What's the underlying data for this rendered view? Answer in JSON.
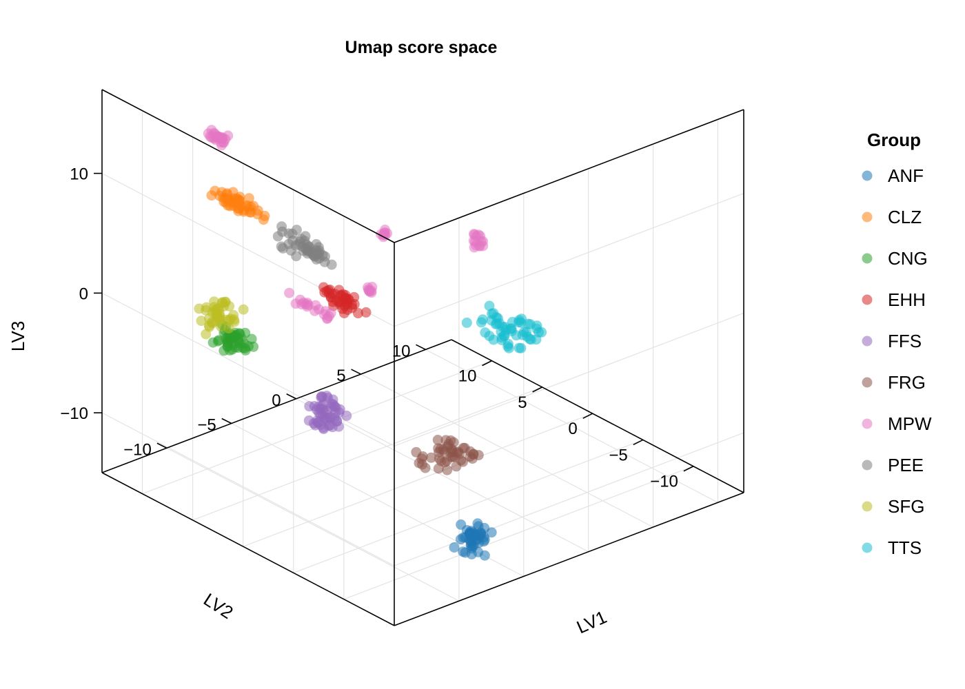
{
  "chart_data": {
    "type": "scatter",
    "projection": "3d",
    "title": "Umap score space",
    "xlabel": "LV1",
    "ylabel": "LV2",
    "zlabel": "LV3",
    "xlim": [
      -15,
      12
    ],
    "ylim": [
      -15,
      14
    ],
    "zlim": [
      -15,
      17
    ],
    "x_ticks": [
      -10,
      -5,
      0,
      5,
      10
    ],
    "x_tick_labels": [
      "−10",
      "−5",
      "0",
      "5",
      "10"
    ],
    "y_ticks": [
      -10,
      -5,
      0,
      5,
      10
    ],
    "y_tick_labels": [
      "−10",
      "−5",
      "0",
      "5",
      "10"
    ],
    "z_ticks": [
      -10,
      0,
      10
    ],
    "z_tick_labels": [
      "−10",
      "0",
      "10"
    ],
    "grid": true,
    "legend": {
      "title": "Group",
      "placement": "right"
    },
    "series": [
      {
        "name": "ANF",
        "color": "#1f77b4",
        "clusters": [
          {
            "center": [
              -5,
              -10,
              -14
            ],
            "spread": [
              0.8,
              0.8,
              1.0
            ],
            "n": 45
          }
        ]
      },
      {
        "name": "CLZ",
        "color": "#ff7f0e",
        "clusters": [
          {
            "center": [
              -11.5,
              5,
              10
            ],
            "spread": [
              0.4,
              2.0,
              0.4
            ],
            "n": 45
          }
        ]
      },
      {
        "name": "CNG",
        "color": "#2ca02c",
        "clusters": [
          {
            "center": [
              -9,
              8.5,
              -4
            ],
            "spread": [
              0.3,
              1.5,
              1.0
            ],
            "n": 45
          }
        ]
      },
      {
        "name": "EHH",
        "color": "#d62728",
        "clusters": [
          {
            "center": [
              -12,
              -6,
              7
            ],
            "spread": [
              0.4,
              1.5,
              0.6
            ],
            "n": 40
          }
        ]
      },
      {
        "name": "FFS",
        "color": "#9467bd",
        "clusters": [
          {
            "center": [
              -6,
              3,
              -9
            ],
            "spread": [
              0.8,
              1.2,
              1.2
            ],
            "n": 50
          }
        ]
      },
      {
        "name": "FRG",
        "color": "#8c564b",
        "clusters": [
          {
            "center": [
              -3,
              -5.5,
              -10
            ],
            "spread": [
              1.5,
              1.5,
              0.8
            ],
            "n": 45
          }
        ]
      },
      {
        "name": "MPW",
        "color": "#e377c2",
        "clusters": [
          {
            "center": [
              -13,
              5,
              16
            ],
            "spread": [
              0.3,
              0.8,
              0.4
            ],
            "n": 22
          },
          {
            "center": [
              -13,
              -10,
              10
            ],
            "spread": [
              0.2,
              0.4,
              0.2
            ],
            "n": 8
          },
          {
            "center": [
              -12,
              -3,
              5
            ],
            "spread": [
              0.3,
              2.0,
              0.3
            ],
            "n": 18
          },
          {
            "center": [
              -6,
              -2.5,
              8.5
            ],
            "spread": [
              0.2,
              0.3,
              0.4
            ],
            "n": 8
          },
          {
            "center": [
              0,
              -4,
              6
            ],
            "spread": [
              0.4,
              0.4,
              0.8
            ],
            "n": 14
          }
        ]
      },
      {
        "name": "PEE",
        "color": "#7f7f7f",
        "clusters": [
          {
            "center": [
              -12.5,
              -3.2,
              10.3
            ],
            "spread": [
              0.5,
              2.5,
              0.8
            ],
            "n": 45
          }
        ]
      },
      {
        "name": "SFG",
        "color": "#bcbd22",
        "clusters": [
          {
            "center": [
              -7.5,
              12,
              -4
            ],
            "spread": [
              1.0,
              1.2,
              1.2
            ],
            "n": 40
          }
        ]
      },
      {
        "name": "TTS",
        "color": "#17becf",
        "clusters": [
          {
            "center": [
              2,
              -4,
              -2
            ],
            "spread": [
              1.5,
              2.0,
              0.8
            ],
            "n": 50
          }
        ]
      }
    ]
  }
}
